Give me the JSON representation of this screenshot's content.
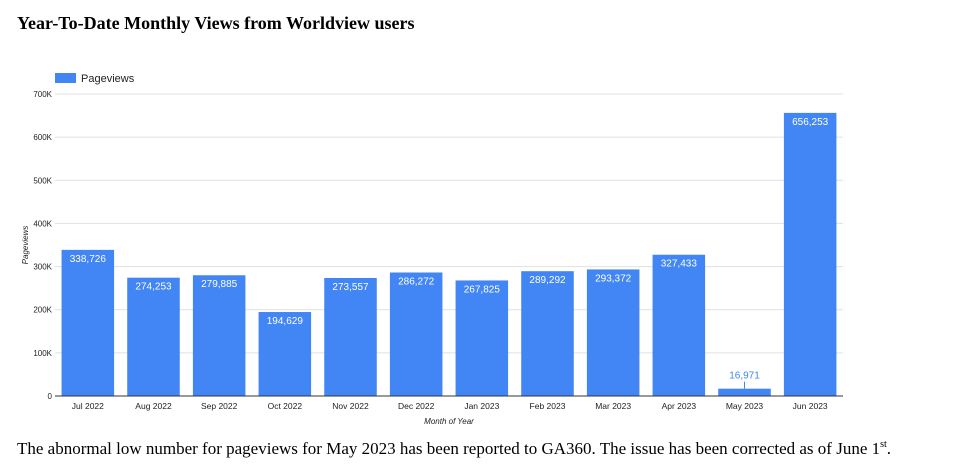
{
  "page": {
    "title": "Year-To-Date Monthly Views from Worldview users",
    "footnote_main": "The abnormal low number for pageviews for May 2023 has been reported to GA360. The issue has been corrected as of June 1",
    "footnote_sup": "st",
    "footnote_end": "."
  },
  "chart_data": {
    "type": "bar",
    "title": "",
    "xlabel": "Month of Year",
    "ylabel": "Pageviews",
    "legend": {
      "label": "Pageviews",
      "position": "top-left"
    },
    "categories": [
      "Jul 2022",
      "Aug 2022",
      "Sep 2022",
      "Oct 2022",
      "Nov 2022",
      "Dec 2022",
      "Jan 2023",
      "Feb 2023",
      "Mar 2023",
      "Apr 2023",
      "May 2023",
      "Jun 2023"
    ],
    "values": [
      338726,
      274253,
      279885,
      194629,
      273557,
      286272,
      267825,
      289292,
      293372,
      327433,
      16971,
      656253
    ],
    "data_labels": [
      "338,726",
      "274,253",
      "279,885",
      "194,629",
      "273,557",
      "286,272",
      "267,825",
      "289,292",
      "293,372",
      "327,433",
      "16,971",
      "656,253"
    ],
    "ylim": [
      0,
      700000
    ],
    "yticks": [
      0,
      100000,
      200000,
      300000,
      400000,
      500000,
      600000,
      700000
    ],
    "ytick_labels": [
      "0",
      "100K",
      "200K",
      "300K",
      "400K",
      "500K",
      "600K",
      "700K"
    ],
    "grid": true,
    "colors": {
      "bar": "#4285f4",
      "label_inside": "#ffffff",
      "label_outside": "#4285f4",
      "grid": "#e0e0e0",
      "axis": "#333333",
      "text": "#222222"
    }
  }
}
